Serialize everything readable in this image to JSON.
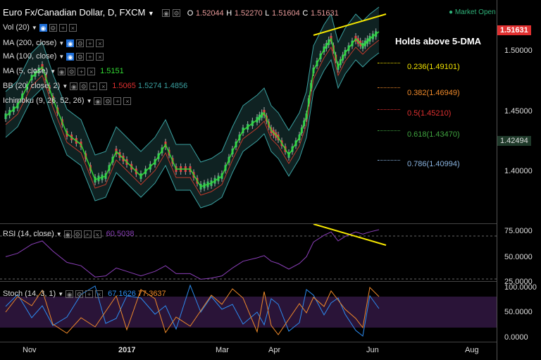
{
  "header": {
    "symbol": "Euro Fx/Canadian Dollar, D, FXCM",
    "ohlc": [
      {
        "label": "O",
        "value": "1.52044"
      },
      {
        "label": "H",
        "value": "1.52270"
      },
      {
        "label": "L",
        "value": "1.51604"
      },
      {
        "label": "C",
        "value": "1.51631"
      }
    ],
    "market_status": "Market Open",
    "market_status_color": "#2fb37a"
  },
  "indicators": [
    {
      "label": "Vol (20)",
      "values": []
    },
    {
      "label": "MA (200, close)",
      "values": []
    },
    {
      "label": "MA (100, close)",
      "values": []
    },
    {
      "label": "MA (5, close)",
      "values": [
        {
          "text": "1.5151",
          "color": "#33dd33"
        }
      ]
    },
    {
      "label": "BB (20, close, 2)",
      "values": [
        {
          "text": "1.5065",
          "color": "#e03030"
        },
        {
          "text": "1.5274",
          "color": "#3aa0a0"
        },
        {
          "text": "1.4856",
          "color": "#3aa0a0"
        }
      ]
    },
    {
      "label": "Ichimoku (9, 26, 52, 26)",
      "values": []
    }
  ],
  "annotation": "Holds above 5-DMA",
  "fib_levels": [
    {
      "label": "0.236(1.49101)",
      "color": "#f5e600"
    },
    {
      "label": "0.382(1.46949)",
      "color": "#f08a2a"
    },
    {
      "label": "0.5(1.45210)",
      "color": "#e03030"
    },
    {
      "label": "0.618(1.43470)",
      "color": "#3fa33f"
    },
    {
      "label": "0.786(1.40994)",
      "color": "#8ab4e0"
    }
  ],
  "price_axis": [
    "1.50000",
    "1.45000",
    "1.40000"
  ],
  "price_tags": [
    {
      "label": "1.51631",
      "color": "#e03030",
      "text_color": "#ffffff"
    },
    {
      "label": "1.42494",
      "color": "#1f3a2a",
      "text_color": "#dddddd"
    }
  ],
  "rsi": {
    "label": "RSI (14, close)",
    "value": "60.5038",
    "axis": [
      "75.0000",
      "50.0000",
      "25.0000"
    ]
  },
  "stoch": {
    "label": "Stoch (14, 3, 1)",
    "values": [
      "67.1626",
      "77.3637"
    ],
    "axis": [
      "100.0000",
      "50.0000",
      "0.0000"
    ]
  },
  "time_axis": [
    "Nov",
    "2017",
    "Mar",
    "Apr",
    "Jun",
    "Aug"
  ]
}
